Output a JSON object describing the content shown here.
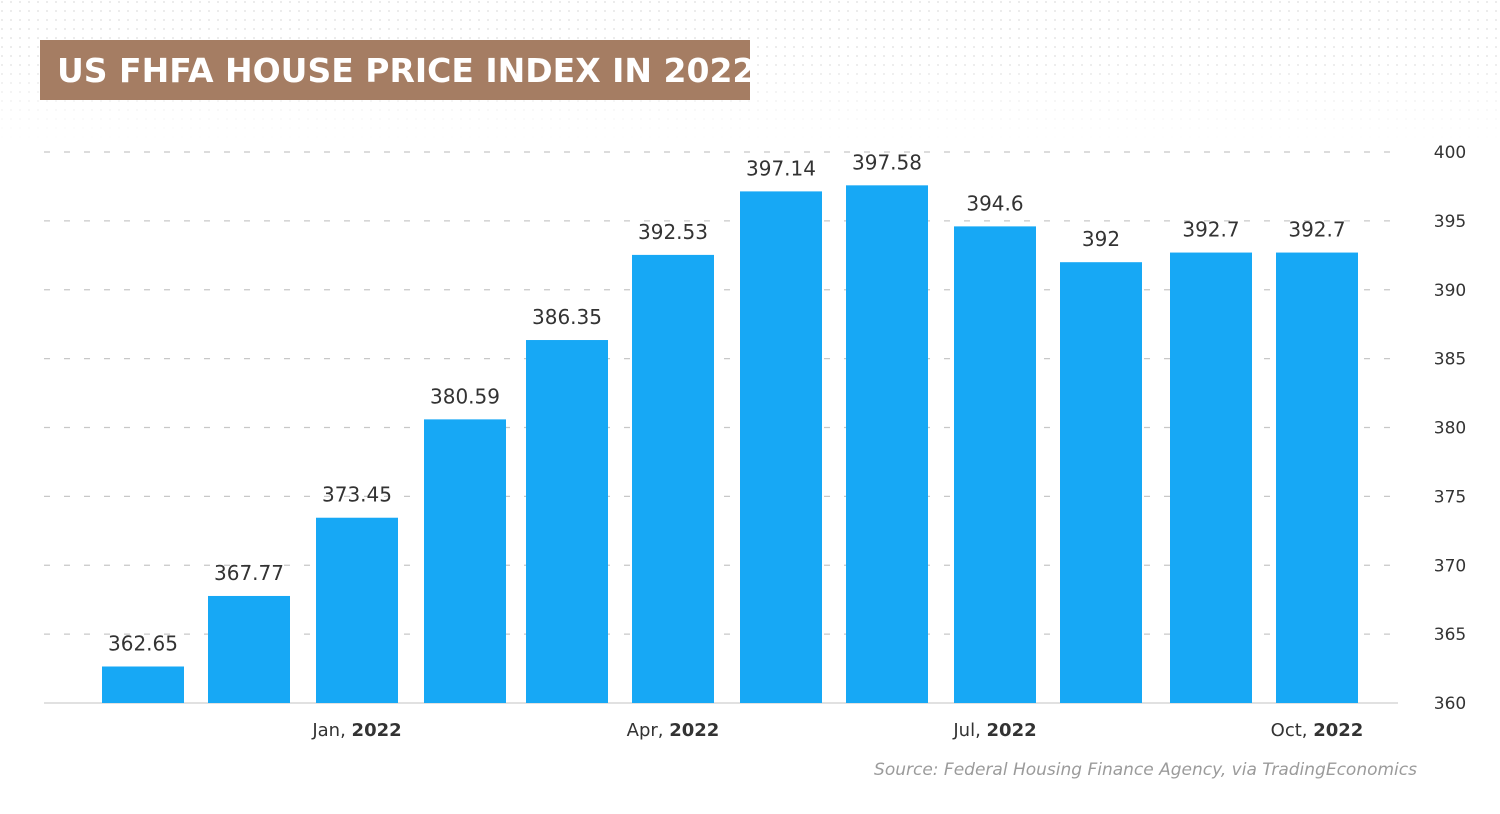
{
  "chart_data": {
    "type": "bar",
    "title": "US FHFA HOUSE PRICE INDEX IN 2022",
    "categories": [
      "",
      "",
      "Jan, 2022",
      "",
      "",
      "Apr, 2022",
      "",
      "",
      "Jul, 2022",
      "",
      "",
      "Oct, 2022"
    ],
    "x_tick_labels": [
      {
        "index": 2,
        "month": "Jan,",
        "year": "2022"
      },
      {
        "index": 5,
        "month": "Apr,",
        "year": "2022"
      },
      {
        "index": 8,
        "month": "Jul,",
        "year": "2022"
      },
      {
        "index": 11,
        "month": "Oct,",
        "year": "2022"
      }
    ],
    "values": [
      362.65,
      367.77,
      373.45,
      380.59,
      386.35,
      392.53,
      397.14,
      397.58,
      394.6,
      392,
      392.7,
      392.7
    ],
    "data_labels": [
      "362.65",
      "367.77",
      "373.45",
      "380.59",
      "386.35",
      "392.53",
      "397.14",
      "397.58",
      "394.6",
      "392",
      "392.7",
      "392.7"
    ],
    "ylim": [
      360,
      400
    ],
    "y_ticks": [
      360,
      365,
      370,
      375,
      380,
      385,
      390,
      395,
      400
    ],
    "y_axis_side": "right",
    "grid": "dashed-horizontal",
    "bar_color": "#17a8f5",
    "xlabel": "",
    "ylabel": ""
  },
  "colors": {
    "title_background": "#a57d63",
    "title_text": "#ffffff",
    "bar": "#17a8f5",
    "grid": "#c8c8c8",
    "text": "#333333",
    "source_text": "#9b9b9b"
  },
  "source": "Source: Federal Housing Finance Agency, via TradingEconomics"
}
